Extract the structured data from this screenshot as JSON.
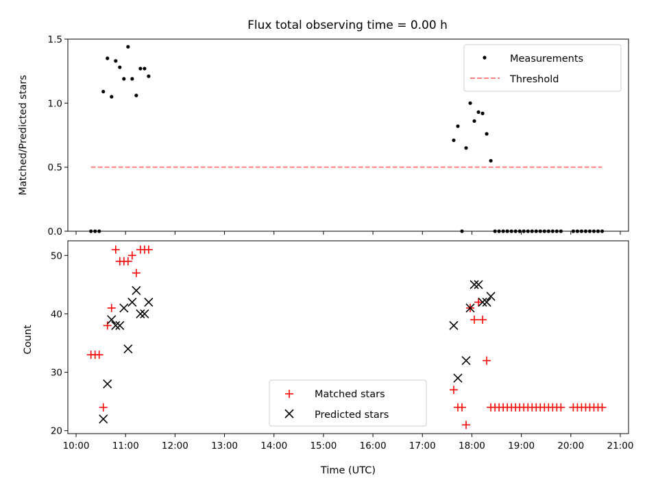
{
  "chart_data": [
    {
      "type": "scatter",
      "title": "Flux total observing time = 0.00 h",
      "xlabel": "",
      "ylabel": "Matched/Predicted stars",
      "xlim": [
        "09:50",
        "21:10"
      ],
      "ylim": [
        0,
        1.5
      ],
      "yticks": [
        "0.0",
        "0.5",
        "1.0",
        "1.5"
      ],
      "legend": {
        "placement": "top-right",
        "entries": [
          "Measurements",
          "Threshold"
        ]
      },
      "grid": false,
      "series": [
        {
          "name": "Measurements",
          "marker": "dot",
          "color": "#000000",
          "points": [
            [
              "10:18",
              0.0
            ],
            [
              "10:23",
              0.0
            ],
            [
              "10:28",
              0.0
            ],
            [
              "10:33",
              1.09
            ],
            [
              "10:38",
              1.35
            ],
            [
              "10:43",
              1.05
            ],
            [
              "10:48",
              1.33
            ],
            [
              "10:53",
              1.28
            ],
            [
              "10:58",
              1.19
            ],
            [
              "11:03",
              1.44
            ],
            [
              "11:08",
              1.19
            ],
            [
              "11:13",
              1.06
            ],
            [
              "11:18",
              1.27
            ],
            [
              "11:23",
              1.27
            ],
            [
              "11:28",
              1.21
            ],
            [
              "17:38",
              0.71
            ],
            [
              "17:43",
              0.82
            ],
            [
              "17:48",
              0.0
            ],
            [
              "17:53",
              0.65
            ],
            [
              "17:58",
              1.0
            ],
            [
              "18:03",
              0.86
            ],
            [
              "18:08",
              0.93
            ],
            [
              "18:13",
              0.92
            ],
            [
              "18:18",
              0.76
            ],
            [
              "18:23",
              0.55
            ],
            [
              "18:28",
              0.0
            ],
            [
              "18:33",
              0.0
            ],
            [
              "18:38",
              0.0
            ],
            [
              "18:43",
              0.0
            ],
            [
              "18:48",
              0.0
            ],
            [
              "18:53",
              0.0
            ],
            [
              "18:58",
              0.0
            ],
            [
              "19:03",
              0.0
            ],
            [
              "19:08",
              0.0
            ],
            [
              "19:13",
              0.0
            ],
            [
              "19:18",
              0.0
            ],
            [
              "19:23",
              0.0
            ],
            [
              "19:28",
              0.0
            ],
            [
              "19:33",
              0.0
            ],
            [
              "19:38",
              0.0
            ],
            [
              "19:43",
              0.0
            ],
            [
              "19:48",
              0.0
            ],
            [
              "20:03",
              0.0
            ],
            [
              "20:08",
              0.0
            ],
            [
              "20:13",
              0.0
            ],
            [
              "20:18",
              0.0
            ],
            [
              "20:23",
              0.0
            ],
            [
              "20:28",
              0.0
            ],
            [
              "20:33",
              0.0
            ],
            [
              "20:38",
              0.0
            ]
          ]
        },
        {
          "name": "Threshold",
          "style": "dashed",
          "color": "#ff7f7f",
          "points": [
            [
              "10:18",
              0.5
            ],
            [
              "20:38",
              0.5
            ]
          ]
        }
      ]
    },
    {
      "type": "scatter",
      "title": "",
      "xlabel": "Time (UTC)",
      "ylabel": "Count",
      "xlim": [
        "09:50",
        "21:10"
      ],
      "ylim": [
        19.5,
        52.5
      ],
      "yticks": [
        "20",
        "30",
        "40",
        "50"
      ],
      "xticks": [
        "10:00",
        "11:00",
        "12:00",
        "13:00",
        "14:00",
        "15:00",
        "16:00",
        "17:00",
        "18:00",
        "19:00",
        "20:00",
        "21:00"
      ],
      "legend": {
        "placement": "lower-center",
        "entries": [
          "Matched stars",
          "Predicted stars"
        ]
      },
      "grid": false,
      "series": [
        {
          "name": "Matched stars",
          "marker": "plus",
          "color": "#ff0000",
          "points": [
            [
              "10:18",
              33
            ],
            [
              "10:23",
              33
            ],
            [
              "10:28",
              33
            ],
            [
              "10:33",
              24
            ],
            [
              "10:38",
              38
            ],
            [
              "10:43",
              41
            ],
            [
              "10:48",
              51
            ],
            [
              "10:53",
              49
            ],
            [
              "10:58",
              49
            ],
            [
              "11:03",
              49
            ],
            [
              "11:08",
              50
            ],
            [
              "11:13",
              47
            ],
            [
              "11:18",
              51
            ],
            [
              "11:23",
              51
            ],
            [
              "11:28",
              51
            ],
            [
              "17:38",
              27
            ],
            [
              "17:43",
              24
            ],
            [
              "17:48",
              24
            ],
            [
              "17:53",
              21
            ],
            [
              "17:58",
              41
            ],
            [
              "18:03",
              39
            ],
            [
              "18:08",
              42
            ],
            [
              "18:13",
              39
            ],
            [
              "18:18",
              32
            ],
            [
              "18:23",
              24
            ],
            [
              "18:28",
              24
            ],
            [
              "18:33",
              24
            ],
            [
              "18:38",
              24
            ],
            [
              "18:43",
              24
            ],
            [
              "18:48",
              24
            ],
            [
              "18:53",
              24
            ],
            [
              "18:58",
              24
            ],
            [
              "19:03",
              24
            ],
            [
              "19:08",
              24
            ],
            [
              "19:13",
              24
            ],
            [
              "19:18",
              24
            ],
            [
              "19:23",
              24
            ],
            [
              "19:28",
              24
            ],
            [
              "19:33",
              24
            ],
            [
              "19:38",
              24
            ],
            [
              "19:43",
              24
            ],
            [
              "19:48",
              24
            ],
            [
              "20:03",
              24
            ],
            [
              "20:08",
              24
            ],
            [
              "20:13",
              24
            ],
            [
              "20:18",
              24
            ],
            [
              "20:23",
              24
            ],
            [
              "20:28",
              24
            ],
            [
              "20:33",
              24
            ],
            [
              "20:38",
              24
            ]
          ]
        },
        {
          "name": "Predicted stars",
          "marker": "x",
          "color": "#000000",
          "points": [
            [
              "10:33",
              22
            ],
            [
              "10:38",
              28
            ],
            [
              "10:43",
              39
            ],
            [
              "10:48",
              38
            ],
            [
              "10:53",
              38
            ],
            [
              "10:58",
              41
            ],
            [
              "11:03",
              34
            ],
            [
              "11:08",
              42
            ],
            [
              "11:13",
              44
            ],
            [
              "11:18",
              40
            ],
            [
              "11:23",
              40
            ],
            [
              "11:28",
              42
            ],
            [
              "17:38",
              38
            ],
            [
              "17:43",
              29
            ],
            [
              "17:53",
              32
            ],
            [
              "17:58",
              41
            ],
            [
              "18:03",
              45
            ],
            [
              "18:08",
              45
            ],
            [
              "18:13",
              42
            ],
            [
              "18:18",
              42
            ],
            [
              "18:23",
              43
            ]
          ]
        }
      ]
    }
  ]
}
